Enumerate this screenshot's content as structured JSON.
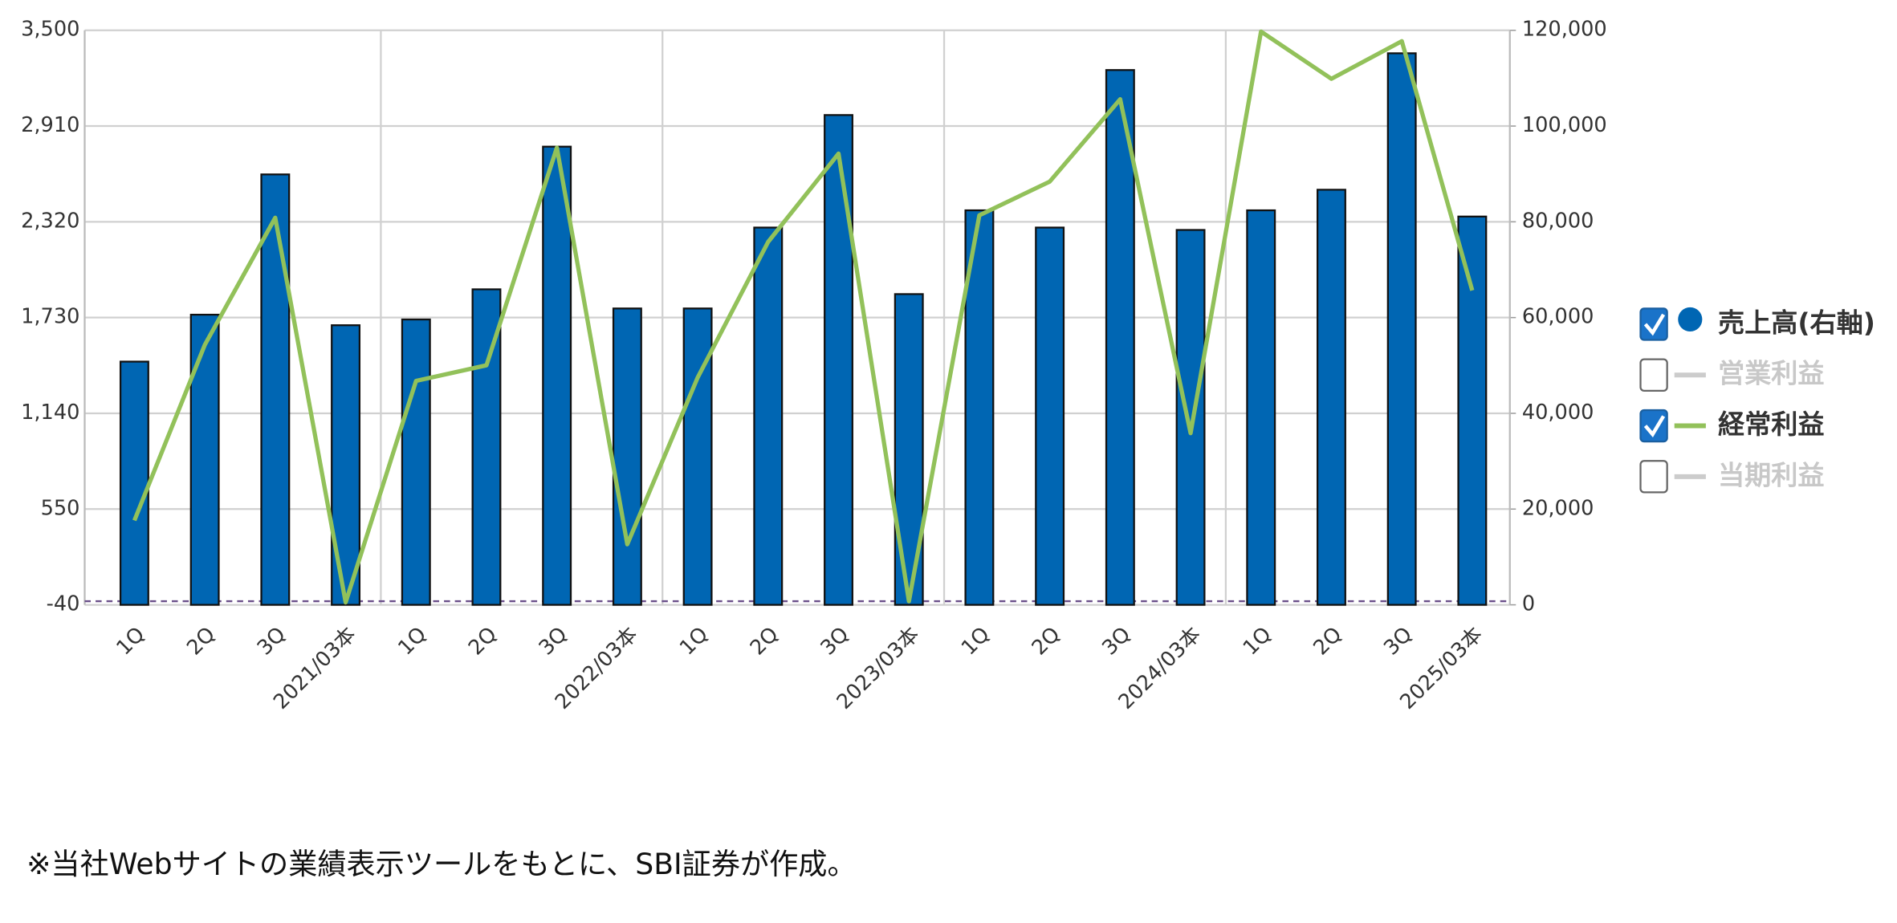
{
  "chart_data": {
    "type": "bar-line",
    "categories": [
      "1Q",
      "2Q",
      "3Q",
      "2021/03本",
      "1Q",
      "2Q",
      "3Q",
      "2022/03本",
      "1Q",
      "2Q",
      "3Q",
      "2023/03本",
      "1Q",
      "2Q",
      "3Q",
      "2024/03本",
      "1Q",
      "2Q",
      "3Q",
      "2025/03本"
    ],
    "series": [
      {
        "name": "売上高(右軸)",
        "type": "bar",
        "axis": "y2",
        "color": "#0066b3",
        "values": [
          50800,
          60600,
          89900,
          58400,
          59600,
          65900,
          95700,
          61900,
          61900,
          78800,
          102300,
          64900,
          82400,
          78800,
          111700,
          78300,
          82400,
          86700,
          115200,
          81100
        ]
      },
      {
        "name": "経常利益",
        "type": "line",
        "axis": "y",
        "color": "#92c15a",
        "values": [
          480,
          1562,
          2345,
          -25,
          1340,
          1436,
          2777,
          333,
          1361,
          2196,
          2740,
          -18,
          2360,
          2568,
          3075,
          1018,
          3492,
          3201,
          3433,
          1897
        ]
      }
    ],
    "legend_items": [
      {
        "name": "売上高(右軸)",
        "checked": true
      },
      {
        "name": "営業利益",
        "checked": false
      },
      {
        "name": "経常利益",
        "checked": true
      },
      {
        "name": "当期利益",
        "checked": false
      }
    ],
    "ylim": [
      -40,
      3500
    ],
    "yticks": [
      -40,
      550,
      {
        "value": 1140,
        "label": "1,140"
      },
      {
        "value": 1730,
        "label": "1,730"
      },
      {
        "value": 2320,
        "label": "2,320"
      },
      {
        "value": 2910,
        "label": "2,910"
      },
      {
        "value": 3500,
        "label": "3,500"
      }
    ],
    "y2lim": [
      0,
      120000
    ],
    "y2ticks": [
      0,
      {
        "value": 20000,
        "label": "20,000"
      },
      {
        "value": 40000,
        "label": "40,000"
      },
      {
        "value": 60000,
        "label": "60,000"
      },
      {
        "value": 80000,
        "label": "80,000"
      },
      {
        "value": 100000,
        "label": "100,000"
      },
      {
        "value": 120000,
        "label": "120,000"
      }
    ],
    "grid": true,
    "note": "※当社Webサイトの業績表示ツールをもとに、SBI証券が作成。"
  }
}
